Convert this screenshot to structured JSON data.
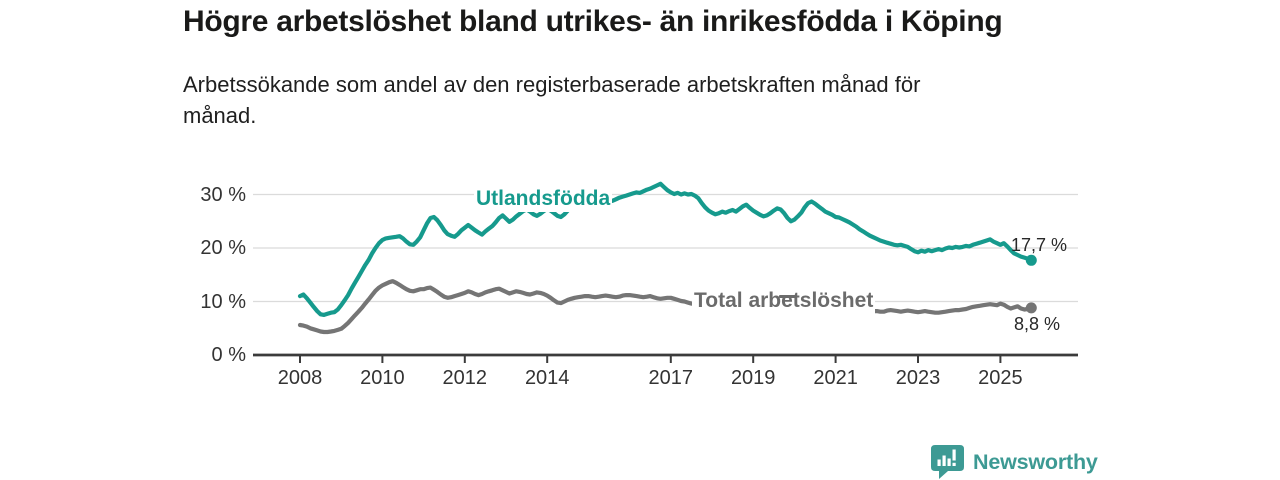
{
  "header": {
    "title": "Högre arbetslöshet bland utrikes- än inrikesfödda i Köping",
    "subtitle_line1": "Arbetssökande som andel av den registerbaserade arbetskraften månad för",
    "subtitle_line2": "månad."
  },
  "footer": {
    "brand": "Newsworthy",
    "logo_icon": "bar-chart-speech-bubble",
    "brand_color": "#3d9a94"
  },
  "colors": {
    "accent_teal": "#169a8d",
    "series_gray": "#757575",
    "label_gray": "#6b6b6b",
    "axis": "#3b3b3b",
    "grid": "#dbdbdb",
    "text": "#333333",
    "title_text": "#1a1a19"
  },
  "chart_data": {
    "type": "line",
    "title": "Högre arbetslöshet bland utrikes- än inrikesfödda i Köping",
    "subtitle": "Arbetssökande som andel av den registerbaserade arbetskraften månad för månad.",
    "x_unit": "month",
    "x_start_year": 2008,
    "x_ticks": [
      2008,
      2010,
      2012,
      2014,
      2017,
      2019,
      2021,
      2023,
      2025
    ],
    "y_ticks": [
      0,
      10,
      20,
      30
    ],
    "y_tick_suffix": " %",
    "ylim": [
      0,
      33
    ],
    "grid": true,
    "legend_position": "inline-labels",
    "series": [
      {
        "name": "Utlandsfödda",
        "color": "#169a8d",
        "end_label": "17,7 %",
        "end_value": 17.7,
        "values": [
          11.0,
          11.3,
          10.6,
          9.8,
          9.0,
          8.2,
          7.6,
          7.5,
          7.7,
          7.9,
          8.0,
          8.5,
          9.3,
          10.2,
          11.2,
          12.4,
          13.5,
          14.6,
          15.7,
          16.8,
          17.8,
          19.0,
          20.0,
          20.9,
          21.5,
          21.8,
          21.9,
          22.0,
          22.1,
          22.2,
          21.8,
          21.2,
          20.7,
          20.6,
          21.2,
          22.0,
          23.3,
          24.6,
          25.6,
          25.8,
          25.2,
          24.3,
          23.3,
          22.6,
          22.3,
          22.1,
          22.6,
          23.3,
          23.8,
          24.3,
          23.8,
          23.3,
          22.9,
          22.5,
          23.1,
          23.6,
          24.1,
          24.8,
          25.6,
          26.1,
          25.5,
          24.9,
          25.3,
          25.9,
          26.4,
          26.9,
          27.2,
          26.8,
          26.3,
          26.0,
          26.4,
          26.9,
          27.3,
          27.0,
          26.5,
          26.0,
          25.8,
          26.3,
          27.0,
          27.6,
          28.3,
          28.6,
          28.4,
          28.6,
          28.9,
          29.1,
          28.8,
          28.6,
          28.9,
          29.2,
          29.0,
          28.8,
          29.1,
          29.4,
          29.6,
          29.8,
          30.0,
          30.2,
          30.4,
          30.3,
          30.6,
          30.9,
          31.1,
          31.4,
          31.7,
          32.0,
          31.4,
          30.8,
          30.4,
          30.1,
          30.3,
          30.0,
          30.2,
          30.0,
          30.1,
          29.8,
          29.3,
          28.4,
          27.6,
          27.0,
          26.6,
          26.3,
          26.5,
          26.8,
          26.6,
          26.9,
          27.1,
          26.8,
          27.3,
          27.8,
          28.1,
          27.5,
          27.0,
          26.6,
          26.2,
          25.9,
          26.1,
          26.5,
          27.0,
          27.4,
          27.2,
          26.5,
          25.6,
          25.0,
          25.3,
          25.9,
          26.6,
          27.6,
          28.4,
          28.7,
          28.3,
          27.8,
          27.3,
          26.8,
          26.5,
          26.2,
          25.8,
          25.7,
          25.4,
          25.1,
          24.8,
          24.4,
          24.0,
          23.5,
          23.1,
          22.7,
          22.3,
          22.0,
          21.7,
          21.4,
          21.2,
          21.0,
          20.8,
          20.6,
          20.5,
          20.6,
          20.4,
          20.2,
          19.8,
          19.4,
          19.2,
          19.5,
          19.3,
          19.6,
          19.4,
          19.6,
          19.8,
          19.6,
          19.9,
          20.1,
          20.0,
          20.2,
          20.1,
          20.2,
          20.4,
          20.3,
          20.6,
          20.8,
          21.0,
          21.2,
          21.4,
          21.6,
          21.2,
          20.9,
          20.6,
          20.9,
          20.3,
          19.6,
          19.0,
          18.7,
          18.4,
          18.2,
          18.0,
          17.7
        ]
      },
      {
        "name": "Total arbetslöshet",
        "color": "#757575",
        "end_label": "8,8 %",
        "end_value": 8.8,
        "values": [
          5.6,
          5.5,
          5.3,
          5.0,
          4.8,
          4.6,
          4.4,
          4.3,
          4.3,
          4.4,
          4.5,
          4.7,
          4.9,
          5.4,
          6.0,
          6.7,
          7.4,
          8.1,
          8.8,
          9.6,
          10.4,
          11.2,
          12.0,
          12.6,
          13.0,
          13.3,
          13.6,
          13.8,
          13.5,
          13.1,
          12.7,
          12.3,
          12.0,
          11.9,
          12.1,
          12.3,
          12.3,
          12.5,
          12.6,
          12.2,
          11.8,
          11.3,
          10.9,
          10.7,
          10.8,
          11.0,
          11.2,
          11.4,
          11.6,
          11.9,
          11.7,
          11.4,
          11.2,
          11.4,
          11.7,
          11.9,
          12.1,
          12.3,
          12.4,
          12.1,
          11.8,
          11.5,
          11.7,
          11.9,
          11.8,
          11.6,
          11.4,
          11.3,
          11.5,
          11.7,
          11.6,
          11.4,
          11.1,
          10.7,
          10.2,
          9.8,
          9.7,
          10.0,
          10.3,
          10.5,
          10.7,
          10.8,
          10.9,
          11.0,
          11.0,
          10.9,
          10.8,
          10.9,
          11.0,
          11.1,
          11.0,
          10.9,
          10.8,
          10.9,
          11.1,
          11.2,
          11.2,
          11.1,
          11.0,
          10.9,
          10.8,
          10.9,
          11.0,
          10.8,
          10.6,
          10.5,
          10.6,
          10.7,
          10.7,
          10.5,
          10.3,
          10.1,
          10.0,
          9.8,
          9.6,
          9.5,
          9.4,
          9.3,
          9.2,
          9.2,
          9.1,
          9.0,
          9.0,
          8.9,
          8.9,
          8.8,
          8.8,
          8.9,
          9.0,
          8.9,
          8.8,
          8.7,
          8.7,
          8.6,
          8.6,
          8.7,
          8.8,
          8.9,
          9.0,
          8.9,
          8.8,
          8.7,
          8.6,
          8.6,
          8.7,
          8.9,
          9.2,
          9.5,
          9.7,
          9.6,
          9.5,
          9.4,
          9.3,
          9.2,
          9.1,
          9.0,
          8.9,
          8.9,
          8.8,
          8.7,
          8.6,
          8.5,
          8.4,
          8.4,
          8.3,
          8.3,
          8.2,
          8.2,
          8.2,
          8.1,
          8.1,
          8.3,
          8.4,
          8.3,
          8.2,
          8.1,
          8.2,
          8.3,
          8.2,
          8.1,
          8.0,
          8.1,
          8.2,
          8.1,
          8.0,
          7.9,
          7.9,
          8.0,
          8.1,
          8.2,
          8.3,
          8.4,
          8.4,
          8.5,
          8.6,
          8.8,
          9.0,
          9.1,
          9.2,
          9.3,
          9.4,
          9.5,
          9.4,
          9.3,
          9.6,
          9.4,
          9.0,
          8.7,
          8.9,
          9.1,
          8.7,
          8.5,
          8.6,
          8.8
        ]
      }
    ]
  }
}
